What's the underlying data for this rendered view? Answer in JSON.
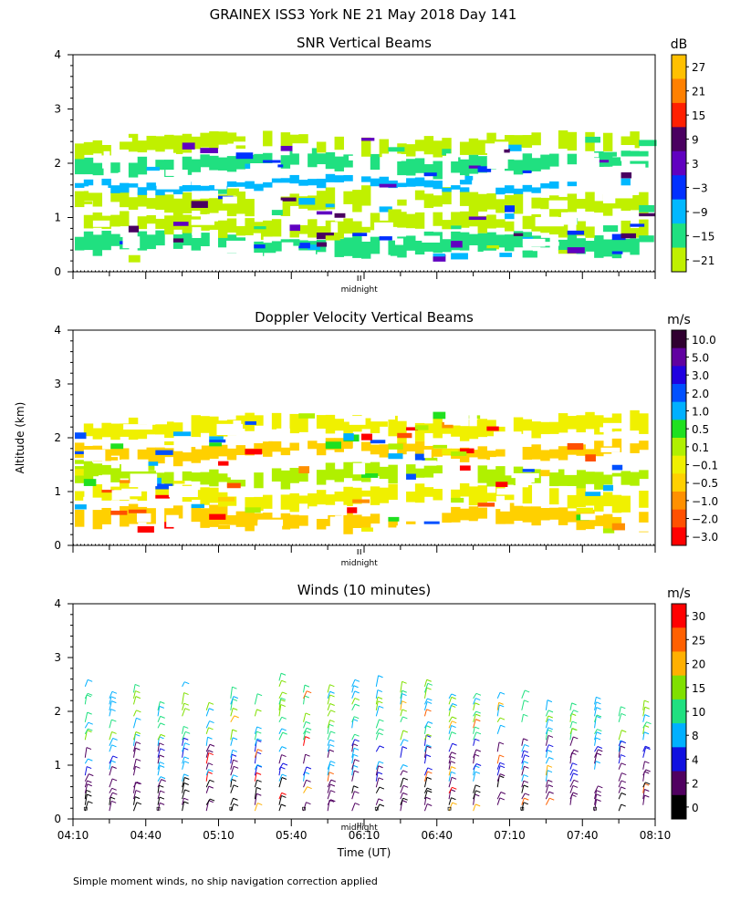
{
  "page": {
    "title": "GRAINEX ISS3 York NE  21 May 2018 Day 141",
    "footnote": "Simple moment winds, no ship navigation correction applied",
    "ylabel": "Altitude (km)",
    "xlabel": "Time (UT)",
    "midnight_label": "midnight"
  },
  "chart_data": [
    {
      "id": "snr",
      "type": "heatmap",
      "title": "SNR Vertical Beams",
      "ylabel": "Altitude (km)",
      "ylim": [
        0,
        4
      ],
      "yticks": [
        "0",
        "1",
        "2",
        "3",
        "4"
      ],
      "xlim_minutes": [
        250,
        490
      ],
      "colorbar": {
        "unit": "dB",
        "labels": [
          "27",
          "21",
          "15",
          "9",
          "3",
          "−3",
          "−9",
          "−15",
          "−21"
        ],
        "colors": [
          "#ffc000",
          "#ff8000",
          "#ff2000",
          "#4a0060",
          "#6000c0",
          "#0030ff",
          "#00b8ff",
          "#20e080",
          "#c0f000"
        ]
      },
      "bands": [
        {
          "alt": 0.5,
          "width": 0.35,
          "color": "#20e080"
        },
        {
          "alt": 0.85,
          "width": 0.3,
          "color": "#c0f000"
        },
        {
          "alt": 1.3,
          "width": 0.35,
          "color": "#c0f000"
        },
        {
          "alt": 1.6,
          "width": 0.15,
          "color": "#00b8ff"
        },
        {
          "alt": 2.0,
          "width": 0.3,
          "color": "#20e080"
        },
        {
          "alt": 2.35,
          "width": 0.3,
          "color": "#c0f000"
        }
      ]
    },
    {
      "id": "doppler",
      "type": "heatmap",
      "title": "Doppler Velocity Vertical Beams",
      "ylabel": "Altitude (km)",
      "ylim": [
        0,
        4
      ],
      "yticks": [
        "0",
        "1",
        "2",
        "3",
        "4"
      ],
      "xlim_minutes": [
        250,
        490
      ],
      "colorbar": {
        "unit": "m/s",
        "labels": [
          "10.0",
          "5.0",
          "3.0",
          "2.0",
          "1.0",
          "0.5",
          "0.1",
          "−0.1",
          "−0.5",
          "−1.0",
          "−2.0",
          "−3.0"
        ],
        "colors": [
          "#300030",
          "#6000a0",
          "#2000e0",
          "#0050ff",
          "#00b0ff",
          "#20e020",
          "#b0f000",
          "#f0f000",
          "#ffd000",
          "#ff9000",
          "#ff5000",
          "#ff0000"
        ]
      },
      "bands": [
        {
          "alt": 0.5,
          "width": 0.35,
          "color": "#ffd000"
        },
        {
          "alt": 0.9,
          "width": 0.3,
          "color": "#f0f000"
        },
        {
          "alt": 1.3,
          "width": 0.3,
          "color": "#b0f000"
        },
        {
          "alt": 1.75,
          "width": 0.25,
          "color": "#ffd000"
        },
        {
          "alt": 2.2,
          "width": 0.35,
          "color": "#f0f000"
        }
      ]
    },
    {
      "id": "winds",
      "type": "scatter",
      "title": "Winds (10 minutes)",
      "ylabel": "Altitude (km)",
      "xlabel": "Time (UT)",
      "ylim": [
        0,
        4
      ],
      "yticks": [
        "0",
        "1",
        "2",
        "3",
        "4"
      ],
      "xlim_minutes": [
        250,
        490
      ],
      "xticks": [
        "04:10",
        "04:40",
        "05:10",
        "05:40",
        "06:10",
        "06:40",
        "07:10",
        "07:40",
        "08:10"
      ],
      "colorbar": {
        "unit": "m/s",
        "labels": [
          "30",
          "25",
          "20",
          "15",
          "10",
          "8",
          "4",
          "2",
          "0"
        ],
        "colors": [
          "#ff0000",
          "#ff6000",
          "#ffb000",
          "#80e000",
          "#20e080",
          "#00b0ff",
          "#1010e0",
          "#500060",
          "#000000"
        ]
      },
      "profile_times_minutes": [
        255,
        265,
        275,
        285,
        295,
        305,
        315,
        325,
        335,
        345,
        355,
        365,
        375,
        385,
        395,
        405,
        415,
        425,
        435,
        445,
        455,
        465,
        475,
        485
      ]
    }
  ]
}
